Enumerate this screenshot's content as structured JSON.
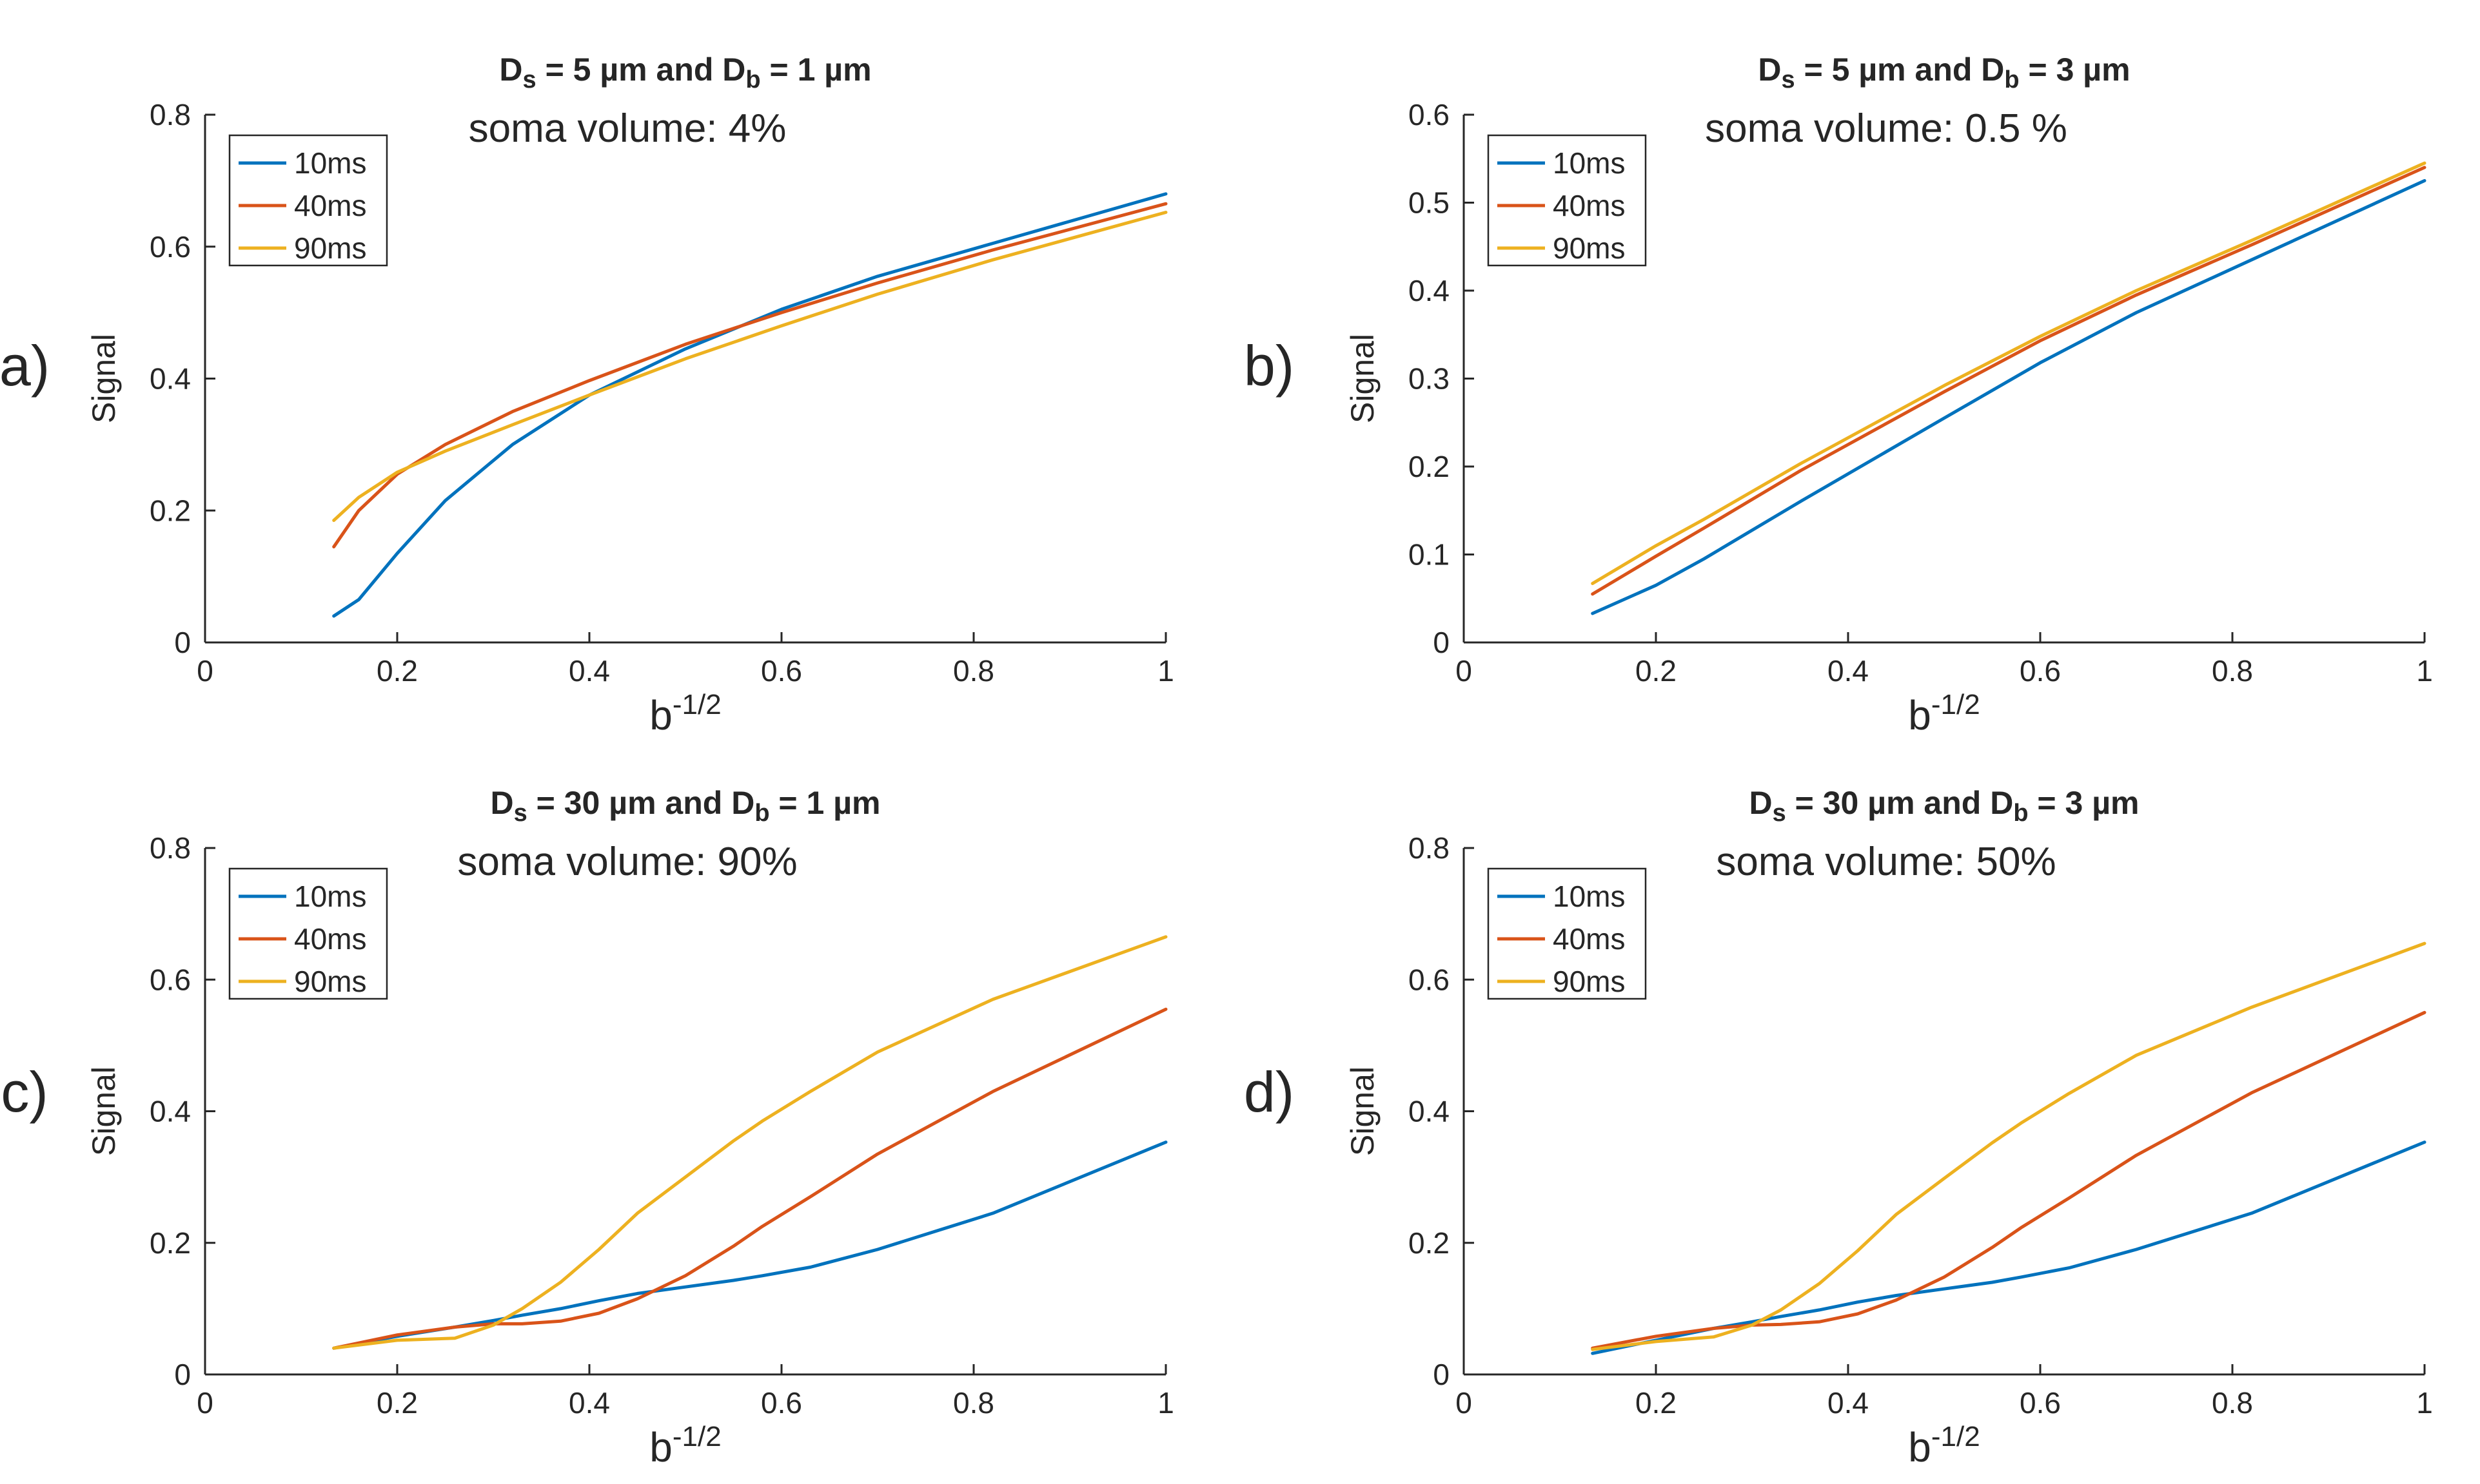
{
  "figure": {
    "legend_labels": [
      "10ms",
      "40ms",
      "90ms"
    ],
    "series_colors": [
      "#0072BD",
      "#D95319",
      "#EDB120"
    ]
  },
  "chart_data": [
    {
      "type": "line",
      "panel_label": "a)",
      "title": {
        "ds_value": "5 µm",
        "db_value": "1 µm"
      },
      "subtitle": "soma volume: 4%",
      "xlabel": "b",
      "xlabel_exponent": "-1/2",
      "ylabel": "Signal",
      "xlim": [
        0,
        1
      ],
      "ylim": [
        0,
        0.8
      ],
      "xticks": [
        0,
        0.2,
        0.4,
        0.6,
        0.8,
        1
      ],
      "xtick_labels": [
        "0",
        "0.2",
        "0.4",
        "0.6",
        "0.8",
        "1"
      ],
      "yticks": [
        0,
        0.2,
        0.4,
        0.6,
        0.8
      ],
      "ytick_labels": [
        "0",
        "0.2",
        "0.4",
        "0.6",
        "0.8"
      ],
      "legend": "top-left",
      "x": [
        0.134,
        0.16,
        0.2,
        0.25,
        0.32,
        0.4,
        0.5,
        0.6,
        0.7,
        0.82,
        1.0
      ],
      "series": [
        {
          "name": "10ms",
          "values": [
            0.04,
            0.065,
            0.135,
            0.215,
            0.3,
            0.375,
            0.445,
            0.505,
            0.555,
            0.605,
            0.68
          ]
        },
        {
          "name": "40ms",
          "values": [
            0.145,
            0.2,
            0.255,
            0.3,
            0.35,
            0.397,
            0.452,
            0.5,
            0.545,
            0.595,
            0.665
          ]
        },
        {
          "name": "90ms",
          "values": [
            0.185,
            0.22,
            0.258,
            0.29,
            0.33,
            0.375,
            0.43,
            0.48,
            0.528,
            0.58,
            0.652
          ]
        }
      ]
    },
    {
      "type": "line",
      "panel_label": "b)",
      "title": {
        "ds_value": "5 µm",
        "db_value": "3 µm"
      },
      "subtitle": "soma volume: 0.5 %",
      "xlabel": "b",
      "xlabel_exponent": "-1/2",
      "ylabel": "Signal",
      "xlim": [
        0,
        1
      ],
      "ylim": [
        0,
        0.6
      ],
      "xticks": [
        0,
        0.2,
        0.4,
        0.6,
        0.8,
        1
      ],
      "xtick_labels": [
        "0",
        "0.2",
        "0.4",
        "0.6",
        "0.8",
        "1"
      ],
      "yticks": [
        0,
        0.1,
        0.2,
        0.3,
        0.4,
        0.5,
        0.6
      ],
      "ytick_labels": [
        "0",
        "0.1",
        "0.2",
        "0.3",
        "0.4",
        "0.5",
        "0.6"
      ],
      "legend": "top-left",
      "x": [
        0.134,
        0.2,
        0.25,
        0.35,
        0.5,
        0.6,
        0.7,
        0.82,
        1.0
      ],
      "series": [
        {
          "name": "10ms",
          "values": [
            0.033,
            0.065,
            0.095,
            0.16,
            0.255,
            0.318,
            0.375,
            0.435,
            0.525
          ]
        },
        {
          "name": "40ms",
          "values": [
            0.055,
            0.098,
            0.13,
            0.195,
            0.285,
            0.343,
            0.395,
            0.452,
            0.54
          ]
        },
        {
          "name": "90ms",
          "values": [
            0.067,
            0.11,
            0.14,
            0.203,
            0.292,
            0.348,
            0.4,
            0.457,
            0.545
          ]
        }
      ]
    },
    {
      "type": "line",
      "panel_label": "c)",
      "title": {
        "ds_value": "30 µm",
        "db_value": "1 µm"
      },
      "subtitle": "soma volume: 90%",
      "xlabel": "b",
      "xlabel_exponent": "-1/2",
      "ylabel": "Signal",
      "xlim": [
        0,
        1
      ],
      "ylim": [
        0,
        0.8
      ],
      "xticks": [
        0,
        0.2,
        0.4,
        0.6,
        0.8,
        1
      ],
      "xtick_labels": [
        "0",
        "0.2",
        "0.4",
        "0.6",
        "0.8",
        "1"
      ],
      "yticks": [
        0,
        0.2,
        0.4,
        0.6,
        0.8
      ],
      "ytick_labels": [
        "0",
        "0.2",
        "0.4",
        "0.6",
        "0.8"
      ],
      "legend": "top-left",
      "x": [
        0.134,
        0.2,
        0.26,
        0.3,
        0.33,
        0.37,
        0.41,
        0.45,
        0.5,
        0.55,
        0.58,
        0.63,
        0.7,
        0.82,
        1.0
      ],
      "series": [
        {
          "name": "10ms",
          "values": [
            0.04,
            0.058,
            0.072,
            0.082,
            0.09,
            0.1,
            0.112,
            0.123,
            0.133,
            0.143,
            0.15,
            0.163,
            0.19,
            0.245,
            0.353
          ]
        },
        {
          "name": "40ms",
          "values": [
            0.04,
            0.06,
            0.072,
            0.077,
            0.077,
            0.081,
            0.093,
            0.115,
            0.15,
            0.195,
            0.225,
            0.27,
            0.335,
            0.43,
            0.555
          ]
        },
        {
          "name": "90ms",
          "values": [
            0.04,
            0.052,
            0.055,
            0.075,
            0.1,
            0.14,
            0.19,
            0.245,
            0.3,
            0.355,
            0.385,
            0.43,
            0.49,
            0.57,
            0.665
          ]
        }
      ]
    },
    {
      "type": "line",
      "panel_label": "d)",
      "title": {
        "ds_value": "30 µm",
        "db_value": "3 µm"
      },
      "subtitle": "soma volume: 50%",
      "xlabel": "b",
      "xlabel_exponent": "-1/2",
      "ylabel": "Signal",
      "xlim": [
        0,
        1
      ],
      "ylim": [
        0,
        0.8
      ],
      "xticks": [
        0,
        0.2,
        0.4,
        0.6,
        0.8,
        1
      ],
      "xtick_labels": [
        "0",
        "0.2",
        "0.4",
        "0.6",
        "0.8",
        "1"
      ],
      "yticks": [
        0,
        0.2,
        0.4,
        0.6,
        0.8
      ],
      "ytick_labels": [
        "0",
        "0.2",
        "0.4",
        "0.6",
        "0.8"
      ],
      "legend": "top-left",
      "x": [
        0.134,
        0.2,
        0.26,
        0.3,
        0.33,
        0.37,
        0.41,
        0.45,
        0.5,
        0.55,
        0.58,
        0.63,
        0.7,
        0.82,
        1.0
      ],
      "series": [
        {
          "name": "10ms",
          "values": [
            0.032,
            0.052,
            0.07,
            0.08,
            0.088,
            0.098,
            0.11,
            0.12,
            0.13,
            0.14,
            0.148,
            0.162,
            0.19,
            0.245,
            0.353
          ]
        },
        {
          "name": "40ms",
          "values": [
            0.04,
            0.058,
            0.07,
            0.075,
            0.076,
            0.08,
            0.092,
            0.113,
            0.148,
            0.193,
            0.223,
            0.268,
            0.333,
            0.428,
            0.55
          ]
        },
        {
          "name": "90ms",
          "values": [
            0.038,
            0.05,
            0.057,
            0.075,
            0.098,
            0.138,
            0.188,
            0.243,
            0.298,
            0.352,
            0.382,
            0.427,
            0.485,
            0.558,
            0.655
          ]
        }
      ]
    }
  ]
}
